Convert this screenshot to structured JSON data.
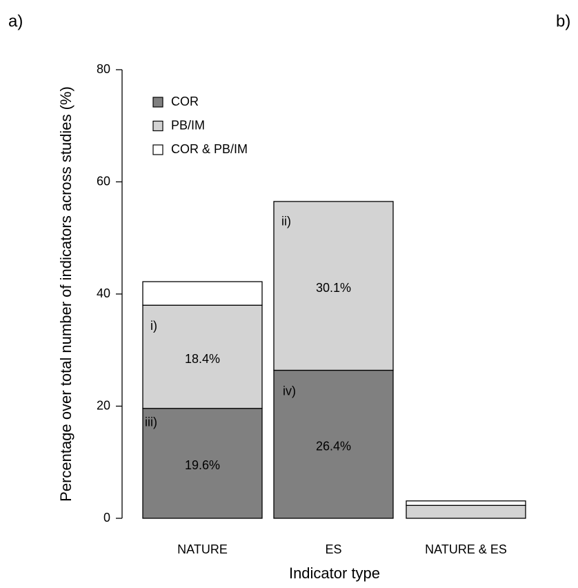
{
  "chart_data": {
    "type": "stacked_bar",
    "panel_labels": [
      "a)",
      "b)"
    ],
    "x_label": "Indicator type",
    "y_label": "Percentage over total number of indicators across studies (%)",
    "categories": [
      "NATURE",
      "ES",
      "NATURE & ES"
    ],
    "series": [
      {
        "name": "COR",
        "color": "#808080",
        "values": [
          19.6,
          26.4,
          0
        ],
        "value_labels": [
          "19.6%",
          "26.4%",
          null
        ]
      },
      {
        "name": "PB/IM",
        "color": "#d3d3d3",
        "values": [
          18.4,
          30.1,
          2.3
        ],
        "value_labels": [
          "18.4%",
          "30.1%",
          null
        ]
      },
      {
        "name": "COR & PB/IM",
        "color": "#ffffff",
        "values": [
          4.2,
          0,
          0.8
        ],
        "value_labels": [
          null,
          null,
          null
        ]
      }
    ],
    "annotations": [
      "i)",
      "ii)",
      "iii)",
      "iv)"
    ],
    "ylim": [
      0,
      80
    ],
    "yticks": [
      0,
      20,
      40,
      60,
      80
    ],
    "legend": "top-left"
  }
}
